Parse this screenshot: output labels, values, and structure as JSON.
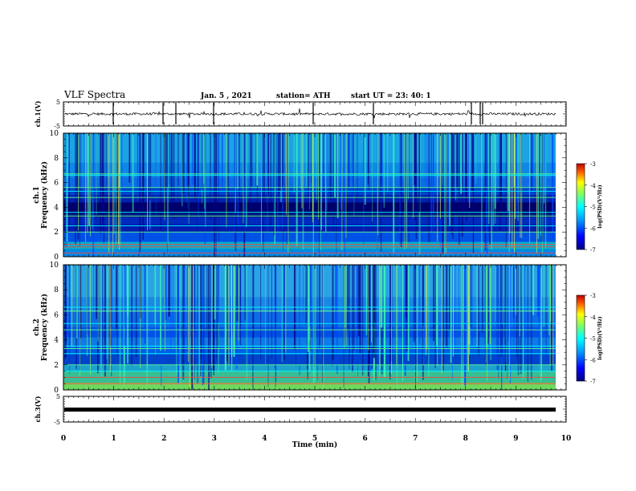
{
  "header": {
    "title": "VLF Spectra",
    "date": "Jan. 5 , 2021",
    "station": "station= ATH",
    "start": "start UT = 23: 40: 1"
  },
  "colors": {
    "spectrogram_background": "#00005a",
    "noise_line": "#000000",
    "ch3_line": "#000000"
  },
  "chart_data": [
    {
      "type": "line",
      "panel": "ch1-waveform",
      "ylabel": "ch.1(V)",
      "ylim": [
        -5,
        5
      ],
      "yticks": [
        "5",
        "-5"
      ],
      "xlim": [
        0,
        10
      ],
      "series": [
        {
          "values_description": "noise around 0 V with small spikes"
        }
      ],
      "baseline_v": 0
    },
    {
      "type": "heatmap",
      "panel": "ch1-spectrogram",
      "ylabel": "ch.1\nFrequency (kHz)",
      "ylim": [
        0,
        10
      ],
      "yticks": [
        "0",
        "2",
        "4",
        "6",
        "8",
        "10"
      ],
      "xlim": [
        0,
        9.83
      ],
      "colorbar": {
        "label": "log(PSD)(V²/Hz)",
        "range": [
          -7,
          -3
        ],
        "ticks": [
          "-3",
          "-4",
          "-5",
          "-6",
          "-7"
        ]
      },
      "bands_khz": [
        0.3,
        0.8,
        1.0,
        2.0,
        2.5,
        3.3,
        3.6,
        4.8,
        5.3,
        5.6,
        6.6,
        6.7
      ]
    },
    {
      "type": "heatmap",
      "panel": "ch2-spectrogram",
      "ylabel": "ch.2\nFrequency (kHz)",
      "ylim": [
        0,
        10
      ],
      "yticks": [
        "0",
        "2",
        "4",
        "6",
        "8",
        "10"
      ],
      "xlim": [
        0,
        9.83
      ],
      "colorbar": {
        "label": "log(PSD)(V²/Hz)",
        "range": [
          -7,
          -3
        ],
        "ticks": [
          "-3",
          "-4",
          "-5",
          "-6",
          "-7"
        ]
      },
      "bands_khz": [
        0.5,
        1.0,
        1.5,
        2.0,
        2.9,
        3.3,
        3.5,
        4.8,
        5.3,
        6.3,
        6.6
      ]
    },
    {
      "type": "line",
      "panel": "ch3-waveform",
      "ylabel": "ch.3(V)",
      "ylim": [
        -5,
        5
      ],
      "yticks": [
        "5",
        "-5"
      ],
      "xlim": [
        0,
        9.83
      ],
      "series": [
        {
          "values_description": "flat near 0 V"
        }
      ],
      "baseline_v": 0
    }
  ],
  "xaxis": {
    "label": "Time (min)",
    "ticks": [
      "0",
      "1",
      "2",
      "3",
      "4",
      "5",
      "6",
      "7",
      "8",
      "9",
      "10"
    ],
    "range": [
      0,
      10
    ]
  }
}
